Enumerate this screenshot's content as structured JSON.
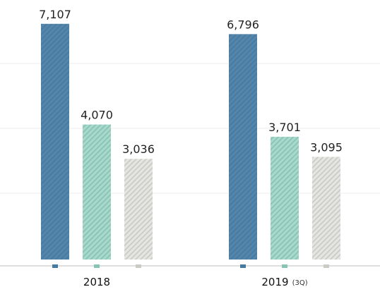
{
  "chart_data": {
    "type": "bar",
    "title": "",
    "xlabel": "",
    "ylabel": "",
    "ylim": [
      0,
      7400
    ],
    "grid": true,
    "legend": "none",
    "categories": [
      {
        "label": "2018",
        "suffix": ""
      },
      {
        "label": "2019",
        "suffix": "(3Q)"
      }
    ],
    "series": [
      {
        "values": [
          7107,
          6796
        ],
        "labels": [
          "7,107",
          "6,796"
        ],
        "color": "#5585ab",
        "stripe": "#477aa0"
      },
      {
        "values": [
          4070,
          3701
        ],
        "labels": [
          "4,070",
          "3,701"
        ],
        "color": "#a9d8cc",
        "stripe": "#86c4b4"
      },
      {
        "values": [
          3036,
          3095
        ],
        "labels": [
          "3,036",
          "3,095"
        ],
        "color": "#e5e5e2",
        "stripe": "#cbcbc6"
      }
    ]
  }
}
